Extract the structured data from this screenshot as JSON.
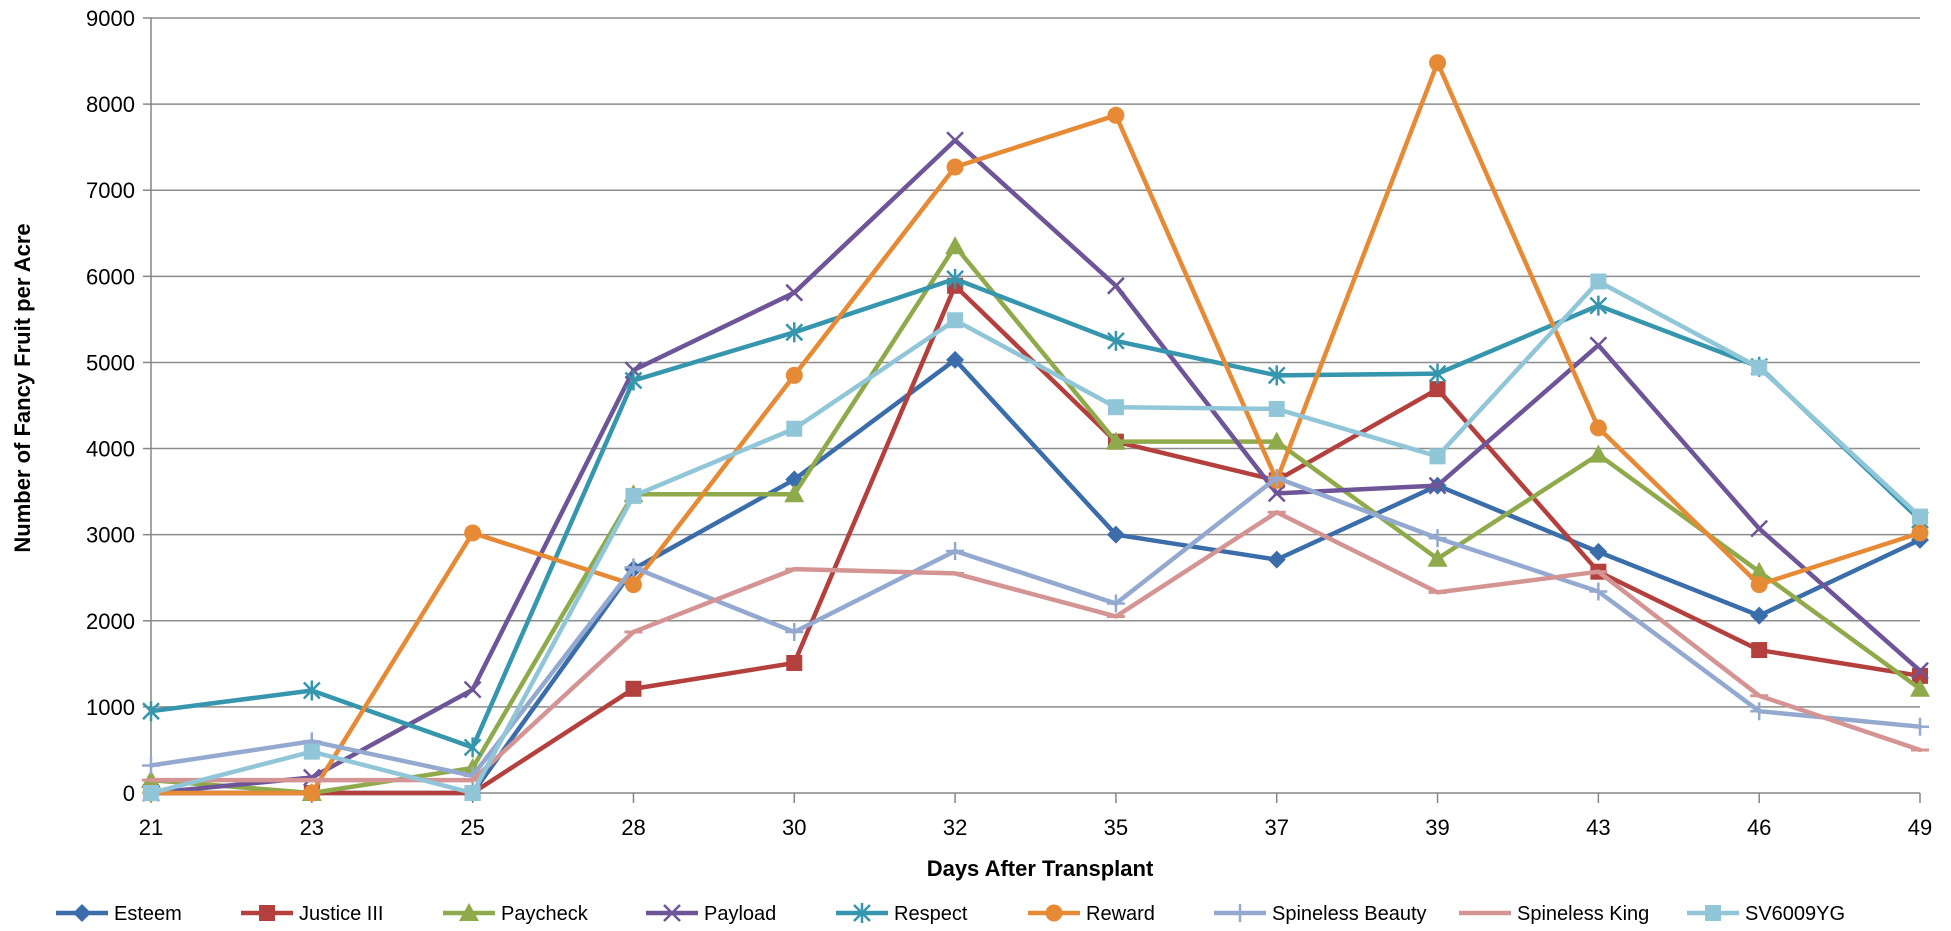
{
  "chart_data": {
    "type": "line",
    "title": "",
    "xlabel": "Days After Transplant",
    "ylabel": "Number of Fancy Fruit per Acre",
    "categories": [
      "21",
      "23",
      "25",
      "28",
      "30",
      "32",
      "35",
      "37",
      "39",
      "43",
      "46",
      "49"
    ],
    "ylim": [
      0,
      9000
    ],
    "yticks": [
      0,
      1000,
      2000,
      3000,
      4000,
      5000,
      6000,
      7000,
      8000,
      9000
    ],
    "grid": "horizontal",
    "legend_position": "bottom",
    "series": [
      {
        "name": "Esteem",
        "color": "#3B6DAA",
        "marker": "diamond",
        "values": [
          0,
          0,
          0,
          2600,
          3640,
          5030,
          3000,
          2710,
          3570,
          2800,
          2060,
          2940
        ]
      },
      {
        "name": "Justice III",
        "color": "#B4403E",
        "marker": "square",
        "values": [
          0,
          0,
          0,
          1210,
          1510,
          5890,
          4080,
          3630,
          4690,
          2570,
          1660,
          1360
        ]
      },
      {
        "name": "Paycheck",
        "color": "#8FAA4A",
        "marker": "triangle",
        "values": [
          150,
          0,
          290,
          3470,
          3470,
          6350,
          4080,
          4080,
          2720,
          3930,
          2570,
          1210
        ]
      },
      {
        "name": "Payload",
        "color": "#6E5598",
        "marker": "x",
        "values": [
          0,
          180,
          1200,
          4910,
          5810,
          7580,
          5890,
          3480,
          3570,
          5200,
          3070,
          1420
        ]
      },
      {
        "name": "Respect",
        "color": "#3596AE",
        "marker": "star",
        "values": [
          950,
          1190,
          530,
          4790,
          5350,
          5970,
          5250,
          4850,
          4870,
          5660,
          4950,
          3170
        ]
      },
      {
        "name": "Reward",
        "color": "#E68A35",
        "marker": "circle",
        "values": [
          0,
          0,
          3020,
          2420,
          4850,
          7270,
          7870,
          3630,
          8480,
          4240,
          2420,
          3020
        ]
      },
      {
        "name": "Spineless Beauty",
        "color": "#93A9D0",
        "marker": "plus",
        "values": [
          320,
          600,
          200,
          2620,
          1870,
          2810,
          2200,
          3660,
          2960,
          2340,
          950,
          770
        ]
      },
      {
        "name": "Spineless King",
        "color": "#D49493",
        "marker": "dash",
        "values": [
          150,
          150,
          150,
          1870,
          2600,
          2550,
          2050,
          3260,
          2330,
          2570,
          1130,
          500
        ]
      },
      {
        "name": "SV6009YG",
        "color": "#90C6D8",
        "marker": "square",
        "values": [
          0,
          480,
          0,
          3450,
          4230,
          5490,
          4480,
          4460,
          3910,
          5940,
          4940,
          3210
        ]
      }
    ]
  }
}
